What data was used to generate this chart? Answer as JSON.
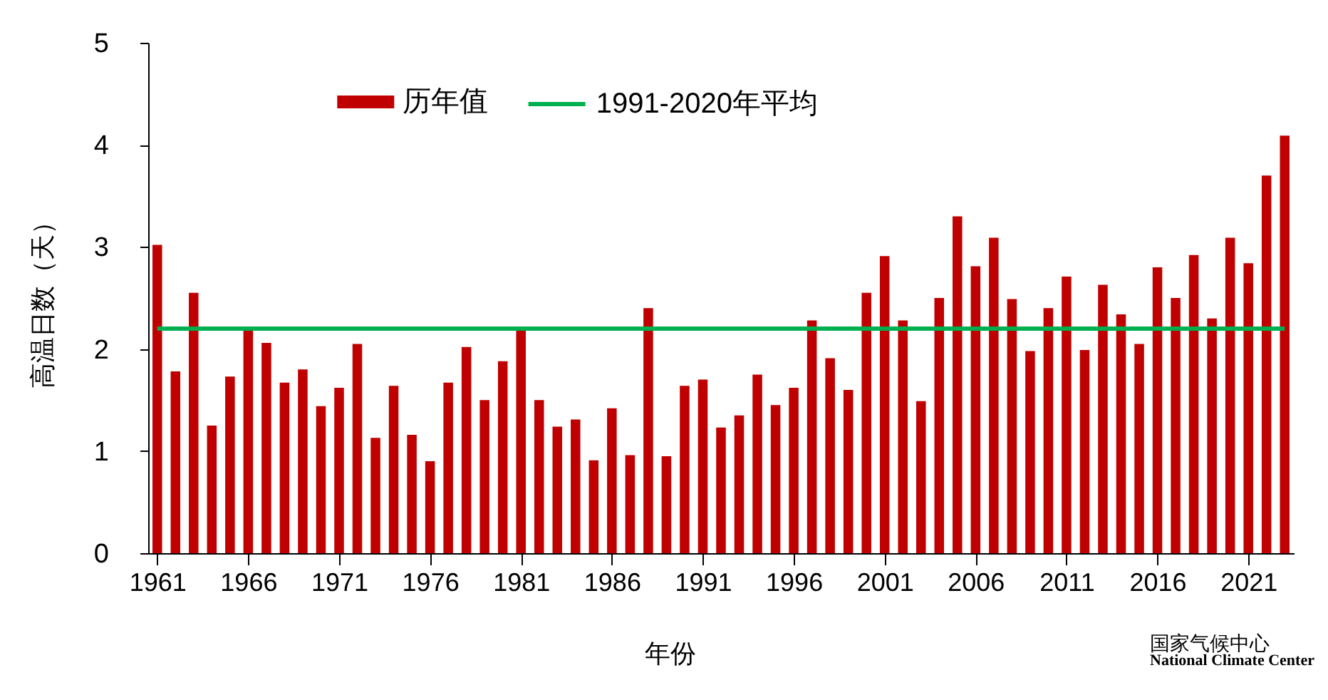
{
  "chart_data": {
    "type": "bar",
    "xlabel": "年份",
    "ylabel": "高温日数（天）",
    "x": [
      1961,
      1962,
      1963,
      1964,
      1965,
      1966,
      1967,
      1968,
      1969,
      1970,
      1971,
      1972,
      1973,
      1974,
      1975,
      1976,
      1977,
      1978,
      1979,
      1980,
      1981,
      1982,
      1983,
      1984,
      1985,
      1986,
      1987,
      1988,
      1989,
      1990,
      1991,
      1992,
      1993,
      1994,
      1995,
      1996,
      1997,
      1998,
      1999,
      2000,
      2001,
      2002,
      2003,
      2004,
      2005,
      2006,
      2007,
      2008,
      2009,
      2010,
      2011,
      2012,
      2013,
      2014,
      2015,
      2016,
      2017,
      2018,
      2019,
      2020,
      2021,
      2022,
      2023
    ],
    "xlim": [
      1960.5,
      2023.5
    ],
    "xticks": [
      1961,
      1966,
      1971,
      1976,
      1981,
      1986,
      1991,
      1996,
      2001,
      2006,
      2011,
      2016,
      2021
    ],
    "ylim": [
      0,
      5
    ],
    "yticks": [
      0,
      1,
      2,
      3,
      4,
      5
    ],
    "series": [
      {
        "name": "历年值",
        "color": "#c00000",
        "values": [
          3.02,
          1.78,
          2.55,
          1.25,
          1.73,
          2.2,
          2.06,
          1.67,
          1.8,
          1.44,
          1.62,
          2.05,
          1.13,
          1.64,
          1.16,
          0.9,
          1.67,
          2.02,
          1.5,
          1.88,
          2.2,
          1.5,
          1.24,
          1.31,
          0.91,
          1.42,
          0.96,
          2.4,
          0.95,
          1.64,
          1.7,
          1.23,
          1.35,
          1.75,
          1.45,
          1.62,
          2.28,
          1.91,
          1.6,
          2.55,
          2.91,
          2.28,
          1.49,
          2.5,
          3.3,
          2.81,
          3.09,
          2.49,
          1.98,
          2.4,
          2.71,
          1.99,
          2.63,
          2.34,
          2.05,
          2.8,
          2.5,
          2.92,
          2.3,
          3.09,
          2.84,
          3.7,
          4.09
        ]
      }
    ],
    "ref_lines": [
      {
        "axis": "y",
        "value": 2.2,
        "label": "1991-2020年平均",
        "color": "#00b050"
      }
    ],
    "legend": "top",
    "grid": false,
    "annotations": [
      "国家气候中心",
      "National Climate Center"
    ]
  }
}
